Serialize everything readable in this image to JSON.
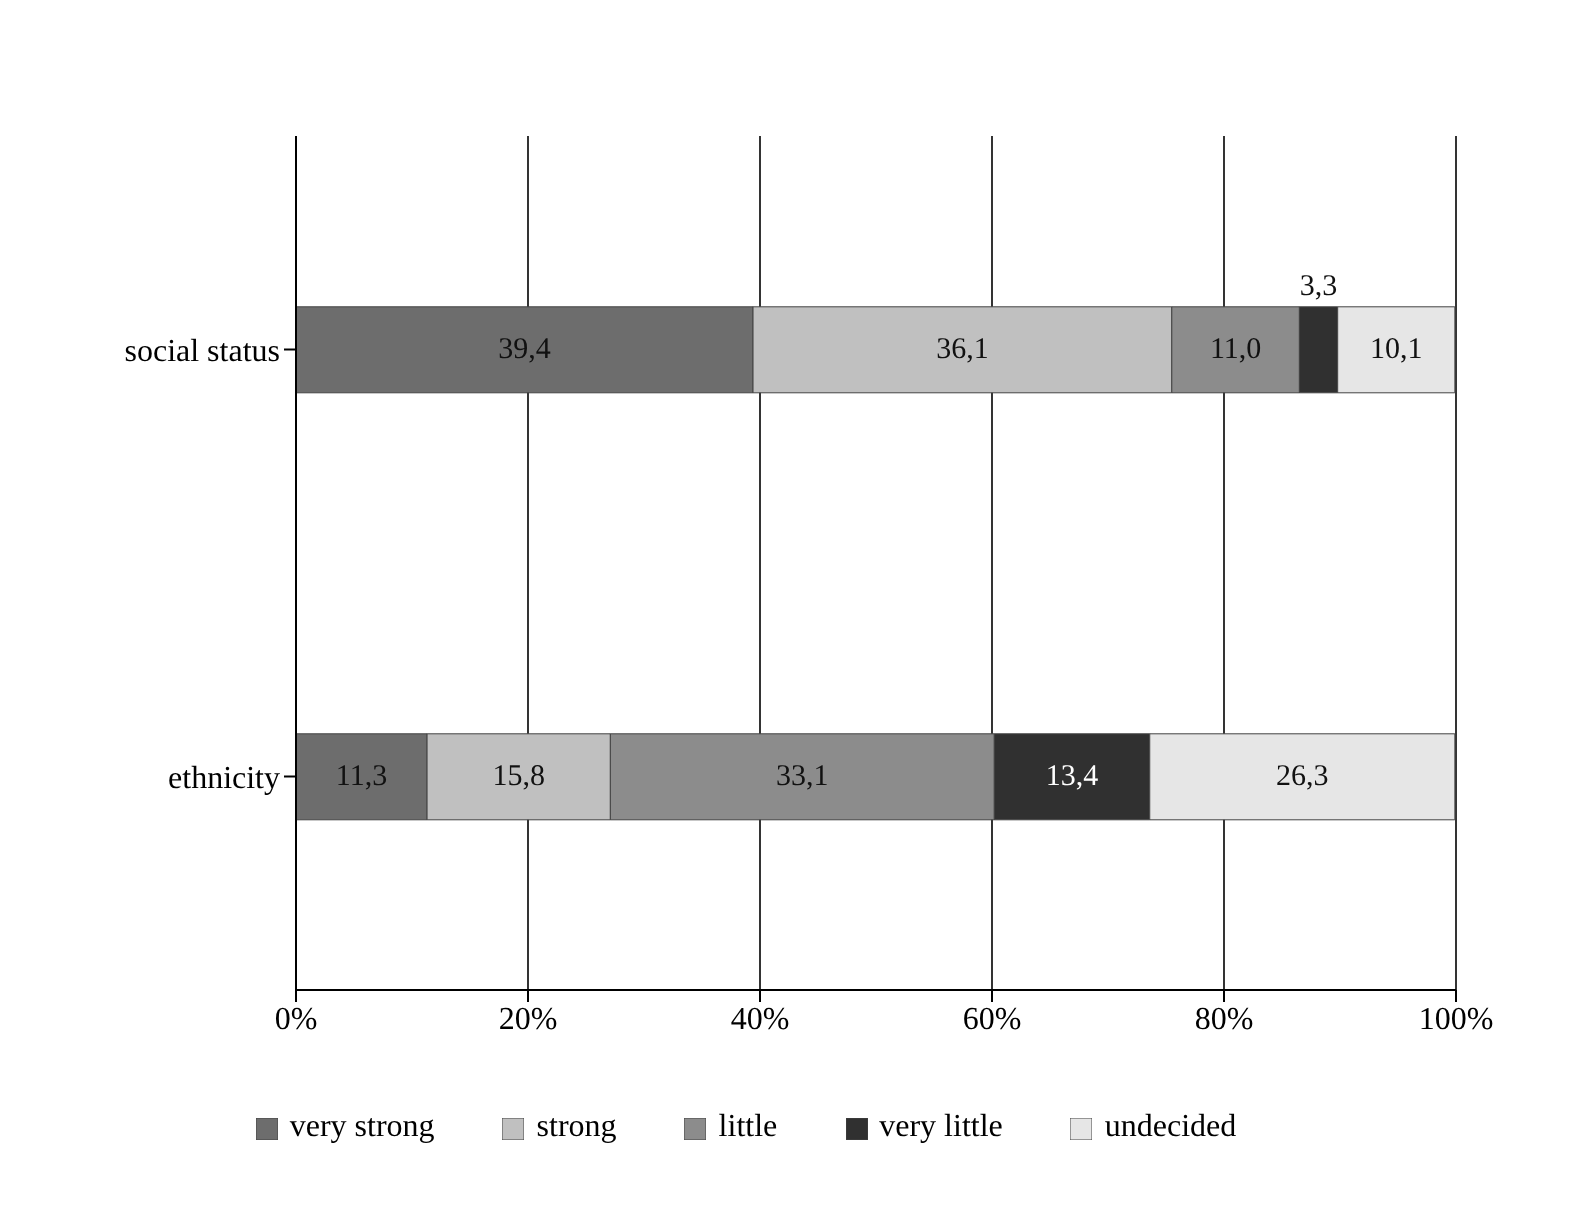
{
  "chart_data": {
    "type": "bar",
    "orientation": "horizontal",
    "stacked": true,
    "categories": [
      "social status",
      "ethnicity"
    ],
    "series": [
      {
        "name": "very strong",
        "color": "#6d6d6d",
        "values": [
          39.4,
          11.3
        ],
        "value_labels": [
          "39,4",
          "11,3"
        ]
      },
      {
        "name": "strong",
        "color": "#c0c0c0",
        "values": [
          36.1,
          15.8
        ],
        "value_labels": [
          "36,1",
          "15,8"
        ]
      },
      {
        "name": "little",
        "color": "#8c8c8c",
        "values": [
          11.0,
          33.1
        ],
        "value_labels": [
          "11,0",
          "33,1"
        ]
      },
      {
        "name": "very little",
        "color": "#303030",
        "values": [
          3.3,
          13.4
        ],
        "value_labels": [
          "3,3",
          "13,4"
        ]
      },
      {
        "name": "undecided",
        "color": "#e6e6e6",
        "values": [
          10.1,
          26.3
        ],
        "value_labels": [
          "10,1",
          "26,3"
        ]
      }
    ],
    "xlim": [
      0,
      100
    ],
    "xticks": [
      {
        "value": 0,
        "label": "0%"
      },
      {
        "value": 20,
        "label": "20%"
      },
      {
        "value": 40,
        "label": "40%"
      },
      {
        "value": 60,
        "label": "60%"
      },
      {
        "value": 80,
        "label": "80%"
      },
      {
        "value": 100,
        "label": "100%"
      }
    ],
    "grid": "x",
    "legend": "bottom"
  }
}
